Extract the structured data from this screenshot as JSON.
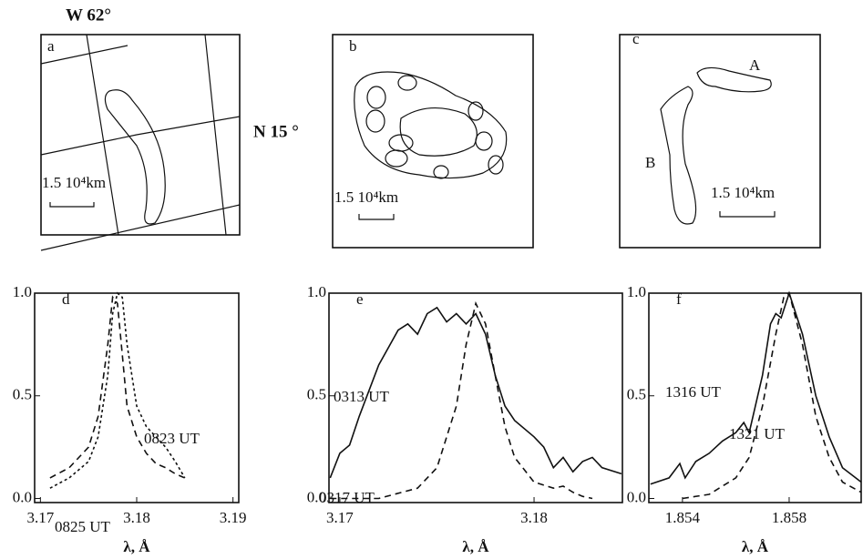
{
  "maps": [
    {
      "label": "a",
      "texts": [
        "W 62°",
        "N 15 °",
        "1.5 10⁴km"
      ]
    },
    {
      "label": "b",
      "texts": [
        "1.5 10⁴km"
      ]
    },
    {
      "label": "c",
      "texts": [
        "A",
        "B",
        "1.5 10⁴km"
      ]
    }
  ],
  "chart_data": [
    {
      "type": "line",
      "label": "d",
      "xlabel": "λ, Å",
      "xlim": [
        3.1694,
        3.1906
      ],
      "ylim": [
        -0.02,
        1.0
      ],
      "xticks": [
        3.17,
        3.18,
        3.19
      ],
      "yticks": [
        {
          "value": 0,
          "label": "0.0"
        },
        0.5,
        {
          "value": 1,
          "label": "1.0"
        }
      ],
      "series": [
        {
          "name": "0823 UT",
          "color": "#111",
          "style": "dotted",
          "x": [
            3.171,
            3.173,
            3.175,
            3.176,
            3.177,
            3.1775,
            3.178,
            3.1785,
            3.179,
            3.18,
            3.181,
            3.182,
            3.183,
            3.184,
            3.185
          ],
          "values": [
            0.05,
            0.1,
            0.18,
            0.3,
            0.6,
            0.9,
            1.0,
            0.98,
            0.75,
            0.45,
            0.35,
            0.3,
            0.25,
            0.18,
            0.1
          ]
        },
        {
          "name": "0825 UT",
          "color": "#111",
          "style": "dashed",
          "x": [
            3.171,
            3.173,
            3.175,
            3.176,
            3.177,
            3.1775,
            3.178,
            3.1785,
            3.179,
            3.18,
            3.181,
            3.182,
            3.183,
            3.184,
            3.185
          ],
          "values": [
            0.1,
            0.15,
            0.25,
            0.4,
            0.75,
            0.98,
            0.95,
            0.7,
            0.45,
            0.3,
            0.22,
            0.17,
            0.15,
            0.12,
            0.1
          ]
        }
      ]
    },
    {
      "type": "line",
      "label": "e",
      "xlabel": "λ, Å",
      "xlim": [
        3.16944,
        3.18455
      ],
      "ylim": [
        -0.02,
        1.0
      ],
      "xticks": [
        3.17,
        3.18
      ],
      "yticks": [
        {
          "value": 0,
          "label": "0.0"
        },
        0.5,
        {
          "value": 1,
          "label": "1.0"
        }
      ],
      "series": [
        {
          "name": "0313 UT",
          "color": "#111",
          "style": "solid",
          "x": [
            3.1695,
            3.17,
            3.1705,
            3.171,
            3.172,
            3.173,
            3.1735,
            3.174,
            3.1745,
            3.175,
            3.1755,
            3.176,
            3.1765,
            3.177,
            3.1775,
            3.178,
            3.1785,
            3.179,
            3.18,
            3.1805,
            3.181,
            3.1815,
            3.182,
            3.1825,
            3.183,
            3.1835,
            3.1845
          ],
          "values": [
            0.1,
            0.22,
            0.26,
            0.4,
            0.65,
            0.82,
            0.85,
            0.8,
            0.9,
            0.93,
            0.86,
            0.9,
            0.85,
            0.9,
            0.8,
            0.6,
            0.45,
            0.38,
            0.3,
            0.25,
            0.15,
            0.2,
            0.13,
            0.18,
            0.2,
            0.15,
            0.12
          ]
        },
        {
          "name": "0317 UT",
          "color": "#111",
          "style": "dashed",
          "x": [
            3.1695,
            3.172,
            3.174,
            3.175,
            3.176,
            3.1765,
            3.177,
            3.1775,
            3.178,
            3.1785,
            3.179,
            3.18,
            3.181,
            3.1815,
            3.182,
            3.1825,
            3.183
          ],
          "values": [
            0,
            0,
            0.05,
            0.15,
            0.45,
            0.75,
            0.95,
            0.85,
            0.6,
            0.35,
            0.2,
            0.08,
            0.05,
            0.06,
            0.03,
            0.01,
            0
          ]
        }
      ]
    },
    {
      "type": "line",
      "label": "f",
      "xlabel": "λ, Å",
      "xlim": [
        1.85274,
        1.8607
      ],
      "ylim": [
        -0.02,
        1.0
      ],
      "xticks": [
        1.854,
        1.858
      ],
      "yticks": [
        {
          "value": 0,
          "label": "0.0"
        },
        0.5,
        {
          "value": 1,
          "label": "1.0"
        }
      ],
      "series": [
        {
          "name": "1316 UT",
          "color": "#111",
          "style": "solid",
          "x": [
            1.8528,
            1.8535,
            1.8539,
            1.8541,
            1.8545,
            1.855,
            1.8555,
            1.856,
            1.8563,
            1.8565,
            1.857,
            1.8573,
            1.8575,
            1.8577,
            1.858,
            1.8585,
            1.859,
            1.8595,
            1.86,
            1.8607
          ],
          "values": [
            0.07,
            0.1,
            0.17,
            0.1,
            0.18,
            0.22,
            0.28,
            0.32,
            0.37,
            0.32,
            0.6,
            0.85,
            0.9,
            0.88,
            1.0,
            0.8,
            0.5,
            0.3,
            0.15,
            0.08
          ]
        },
        {
          "name": "1321 UT",
          "color": "#111",
          "style": "dashed",
          "x": [
            1.854,
            1.855,
            1.856,
            1.8565,
            1.857,
            1.8575,
            1.8578,
            1.858,
            1.8585,
            1.859,
            1.8595,
            1.86,
            1.8607
          ],
          "values": [
            0,
            0.02,
            0.1,
            0.2,
            0.45,
            0.8,
            0.98,
            1.0,
            0.75,
            0.4,
            0.2,
            0.08,
            0.03
          ]
        }
      ]
    }
  ]
}
